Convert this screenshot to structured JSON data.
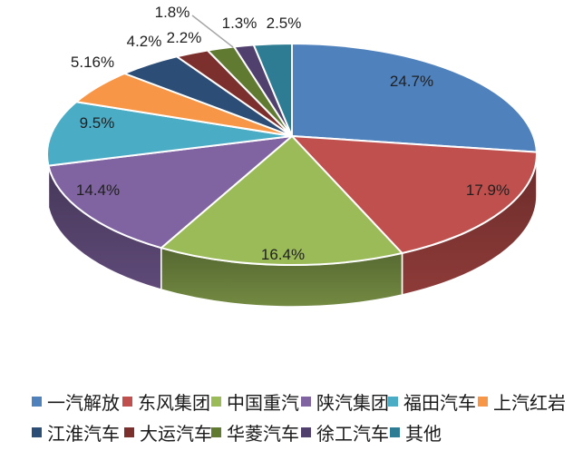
{
  "chart_data": {
    "type": "pie",
    "effect": "3d",
    "legend_position": "bottom",
    "slices": [
      {
        "label": "一汽解放",
        "value": 24.7,
        "display": "24.7%",
        "color": "#4F81BD",
        "label_placement": "inside"
      },
      {
        "label": "东风集团",
        "value": 17.9,
        "display": "17.9%",
        "color": "#C0504D",
        "label_placement": "inside"
      },
      {
        "label": "中国重汽",
        "value": 16.4,
        "display": "16.4%",
        "color": "#9BBB59",
        "label_placement": "inside"
      },
      {
        "label": "陕汽集团",
        "value": 14.4,
        "display": "14.4%",
        "color": "#8064A2",
        "label_placement": "inside"
      },
      {
        "label": "福田汽车",
        "value": 9.5,
        "display": "9.5%",
        "color": "#4BACC6",
        "label_placement": "inside"
      },
      {
        "label": "上汽红岩",
        "value": 5.16,
        "display": "5.16%",
        "color": "#F79646",
        "label_placement": "outside"
      },
      {
        "label": "江淮汽车",
        "value": 4.2,
        "display": "4.2%",
        "color": "#2C4D75",
        "label_placement": "outside"
      },
      {
        "label": "大运汽车",
        "value": 2.2,
        "display": "2.2%",
        "color": "#7C302E",
        "label_placement": "outside"
      },
      {
        "label": "华菱汽车",
        "value": 1.8,
        "display": "1.8%",
        "color": "#617A32",
        "label_placement": "outside",
        "has_leader_line": true
      },
      {
        "label": "徐工汽车",
        "value": 1.3,
        "display": "1.3%",
        "color": "#50406E",
        "label_placement": "outside"
      },
      {
        "label": "其他",
        "value": 2.5,
        "display": "2.5%",
        "color": "#2D7C93",
        "label_placement": "outside"
      }
    ]
  }
}
